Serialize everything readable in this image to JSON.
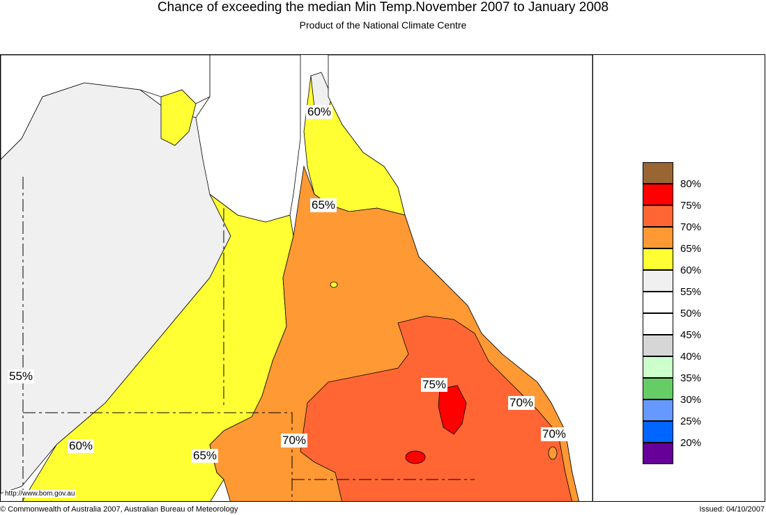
{
  "title": "Chance of exceeding the median Min Temp.November 2007 to January 2008",
  "subtitle": "Product of the National Climate Centre",
  "url": "http://www.bom.gov.au",
  "copyright": "© Commonwealth of Australia 2007, Australian Bureau of Meteorology",
  "issued": "Issued: 04/10/2007",
  "map_labels": [
    {
      "text": "60%"
    },
    {
      "text": "65%"
    },
    {
      "text": "55%"
    },
    {
      "text": "60%"
    },
    {
      "text": "65%"
    },
    {
      "text": "70%"
    },
    {
      "text": "75%"
    },
    {
      "text": "70%"
    },
    {
      "text": "70%"
    }
  ],
  "legend": [
    {
      "label": "80%",
      "color": "#996633"
    },
    {
      "label": "75%",
      "color": "#ff0000"
    },
    {
      "label": "70%",
      "color": "#ff6633"
    },
    {
      "label": "65%",
      "color": "#ff9933"
    },
    {
      "label": "60%",
      "color": "#ffff33"
    },
    {
      "label": "55%",
      "color": "#f0f0f0"
    },
    {
      "label": "50%",
      "color": "#ffffff"
    },
    {
      "label": "45%",
      "color": "#ffffff"
    },
    {
      "label": "40%",
      "color": "#d6d6d6"
    },
    {
      "label": "35%",
      "color": "#ccffcc"
    },
    {
      "label": "30%",
      "color": "#66cc66"
    },
    {
      "label": "25%",
      "color": "#6699ff"
    },
    {
      "label": "20%",
      "color": "#0066ff"
    },
    {
      "label": "",
      "color": "#660099"
    }
  ]
}
